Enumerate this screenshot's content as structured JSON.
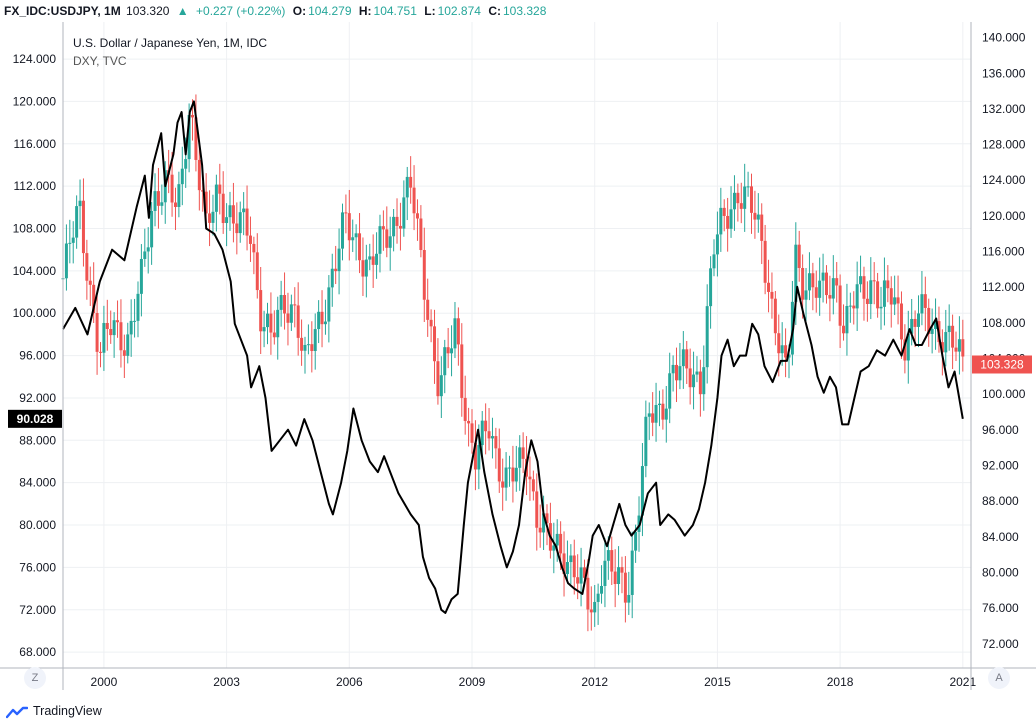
{
  "header": {
    "symbol": "FX_IDC:USDJPY, 1M",
    "price": "103.320",
    "change": "+0.227 (+0.22%)",
    "o_label": "O:",
    "o": "104.279",
    "h_label": "H:",
    "h": "104.751",
    "l_label": "L:",
    "l": "102.874",
    "c_label": "C:",
    "c": "103.328"
  },
  "legend": {
    "title": "U.S. Dollar / Japanese Yen, 1M, IDC",
    "overlay": "DXY, TVC"
  },
  "buttons": {
    "left": "Z",
    "right": "A"
  },
  "footer": {
    "brand": "TradingView"
  },
  "colors": {
    "up": "#26a69a",
    "down": "#ef5350",
    "overlay": "#000000",
    "grid": "#eef0f3"
  },
  "chart_data": {
    "type": "candlestick",
    "title": "U.S. Dollar / Japanese Yen, 1M, IDC",
    "left_axis": {
      "ticks": [
        "68.000",
        "72.000",
        "76.000",
        "80.000",
        "84.000",
        "88.000",
        "92.000",
        "96.000",
        "100.000",
        "104.000",
        "108.000",
        "112.000",
        "116.000",
        "120.000",
        "124.000"
      ],
      "range": [
        66.5,
        127.5
      ],
      "marker_label": "90.028",
      "marker_value": 90.028
    },
    "right_axis": {
      "ticks": [
        "72.000",
        "76.000",
        "80.000",
        "84.000",
        "88.000",
        "92.000",
        "96.000",
        "100.000",
        "104.000",
        "108.000",
        "112.000",
        "116.000",
        "120.000",
        "124.000",
        "128.000",
        "132.000",
        "136.000",
        "140.000"
      ],
      "range": [
        69.28,
        141.75
      ],
      "marker_label": "103.328",
      "marker_value": 103.328
    },
    "x_axis": {
      "ticks": [
        "2000",
        "2003",
        "2006",
        "2009",
        "2012",
        "2015",
        "2018",
        "2021"
      ],
      "range": [
        1999.0,
        2021.2
      ]
    },
    "series": [
      {
        "name": "USDJPY",
        "axis": "right",
        "anchors": [
          [
            1999.0,
            113.0
          ],
          [
            1999.4,
            121.0
          ],
          [
            1999.9,
            104.0
          ],
          [
            2000.2,
            108.0
          ],
          [
            2000.6,
            106.0
          ],
          [
            2000.9,
            112.0
          ],
          [
            2001.2,
            122.0
          ],
          [
            2001.5,
            124.0
          ],
          [
            2001.8,
            120.0
          ],
          [
            2002.1,
            133.0
          ],
          [
            2002.5,
            118.0
          ],
          [
            2002.8,
            123.0
          ],
          [
            2003.2,
            119.0
          ],
          [
            2003.6,
            118.0
          ],
          [
            2003.8,
            110.0
          ],
          [
            2004.1,
            106.0
          ],
          [
            2004.4,
            110.0
          ],
          [
            2004.7,
            110.0
          ],
          [
            2004.9,
            103.0
          ],
          [
            2005.2,
            107.0
          ],
          [
            2005.5,
            112.0
          ],
          [
            2005.9,
            119.0
          ],
          [
            2006.2,
            117.0
          ],
          [
            2006.5,
            114.0
          ],
          [
            2006.9,
            118.0
          ],
          [
            2007.3,
            121.0
          ],
          [
            2007.5,
            123.0
          ],
          [
            2007.8,
            114.0
          ],
          [
            2008.2,
            100.0
          ],
          [
            2008.6,
            108.0
          ],
          [
            2008.9,
            96.0
          ],
          [
            2009.1,
            92.0
          ],
          [
            2009.4,
            97.0
          ],
          [
            2009.8,
            90.0
          ],
          [
            2010.1,
            91.0
          ],
          [
            2010.3,
            94.0
          ],
          [
            2010.6,
            86.0
          ],
          [
            2010.9,
            83.0
          ],
          [
            2011.2,
            83.0
          ],
          [
            2011.4,
            81.0
          ],
          [
            2011.8,
            77.0
          ],
          [
            2012.0,
            76.0
          ],
          [
            2012.2,
            82.0
          ],
          [
            2012.5,
            79.0
          ],
          [
            2012.8,
            78.0
          ],
          [
            2013.0,
            85.0
          ],
          [
            2013.3,
            97.0
          ],
          [
            2013.6,
            98.0
          ],
          [
            2013.9,
            103.0
          ],
          [
            2014.3,
            102.0
          ],
          [
            2014.6,
            102.0
          ],
          [
            2014.9,
            116.0
          ],
          [
            2015.2,
            120.0
          ],
          [
            2015.5,
            123.0
          ],
          [
            2015.8,
            121.0
          ],
          [
            2016.1,
            117.0
          ],
          [
            2016.4,
            108.0
          ],
          [
            2016.7,
            101.0
          ],
          [
            2016.9,
            116.0
          ],
          [
            2017.1,
            113.0
          ],
          [
            2017.5,
            111.0
          ],
          [
            2017.9,
            113.0
          ],
          [
            2018.1,
            107.0
          ],
          [
            2018.4,
            111.0
          ],
          [
            2018.8,
            113.0
          ],
          [
            2019.0,
            110.0
          ],
          [
            2019.3,
            111.0
          ],
          [
            2019.6,
            106.0
          ],
          [
            2019.9,
            109.0
          ],
          [
            2020.2,
            108.0
          ],
          [
            2020.5,
            107.0
          ],
          [
            2020.8,
            105.0
          ],
          [
            2021.0,
            103.328
          ]
        ]
      },
      {
        "name": "DXY",
        "axis": "left",
        "values": [
          [
            1999.0,
            98.5
          ],
          [
            1999.3,
            100.5
          ],
          [
            1999.6,
            98.0
          ],
          [
            1999.9,
            103.0
          ],
          [
            2000.2,
            106.0
          ],
          [
            2000.5,
            105.0
          ],
          [
            2000.8,
            110.0
          ],
          [
            2001.0,
            113.0
          ],
          [
            2001.1,
            109.0
          ],
          [
            2001.2,
            114.0
          ],
          [
            2001.4,
            117.0
          ],
          [
            2001.5,
            112.0
          ],
          [
            2001.7,
            115.0
          ],
          [
            2001.8,
            118.0
          ],
          [
            2001.9,
            119.0
          ],
          [
            2002.0,
            115.0
          ],
          [
            2002.1,
            119.0
          ],
          [
            2002.2,
            120.0
          ],
          [
            2002.4,
            114.0
          ],
          [
            2002.5,
            108.0
          ],
          [
            2002.7,
            107.5
          ],
          [
            2002.9,
            106.0
          ],
          [
            2003.1,
            103.0
          ],
          [
            2003.2,
            99.0
          ],
          [
            2003.5,
            96.0
          ],
          [
            2003.6,
            93.0
          ],
          [
            2003.8,
            95.0
          ],
          [
            2003.95,
            92.0
          ],
          [
            2004.1,
            87.0
          ],
          [
            2004.3,
            88.0
          ],
          [
            2004.5,
            89.0
          ],
          [
            2004.7,
            87.5
          ],
          [
            2004.9,
            90.0
          ],
          [
            2005.1,
            88.0
          ],
          [
            2005.3,
            85.0
          ],
          [
            2005.5,
            82.0
          ],
          [
            2005.6,
            81.0
          ],
          [
            2005.8,
            84.0
          ],
          [
            2005.95,
            87.0
          ],
          [
            2006.1,
            91.0
          ],
          [
            2006.3,
            88.0
          ],
          [
            2006.5,
            86.0
          ],
          [
            2006.7,
            85.0
          ],
          [
            2006.85,
            86.5
          ],
          [
            2007.0,
            85.0
          ],
          [
            2007.2,
            83.0
          ],
          [
            2007.5,
            81.0
          ],
          [
            2007.7,
            80.0
          ],
          [
            2007.8,
            77.0
          ],
          [
            2007.95,
            75.0
          ],
          [
            2008.1,
            74.0
          ],
          [
            2008.25,
            72.0
          ],
          [
            2008.35,
            71.7
          ],
          [
            2008.5,
            73.0
          ],
          [
            2008.65,
            73.5
          ],
          [
            2008.8,
            80.0
          ],
          [
            2008.9,
            84.0
          ],
          [
            2009.0,
            86.0
          ],
          [
            2009.15,
            89.0
          ],
          [
            2009.3,
            85.0
          ],
          [
            2009.5,
            81.0
          ],
          [
            2009.7,
            78.0
          ],
          [
            2009.85,
            76.0
          ],
          [
            2010.0,
            77.5
          ],
          [
            2010.15,
            80.0
          ],
          [
            2010.3,
            85.0
          ],
          [
            2010.45,
            88.0
          ],
          [
            2010.6,
            86.0
          ],
          [
            2010.75,
            81.0
          ],
          [
            2010.9,
            79.0
          ],
          [
            2011.05,
            78.0
          ],
          [
            2011.2,
            76.0
          ],
          [
            2011.35,
            74.5
          ],
          [
            2011.5,
            74.0
          ],
          [
            2011.7,
            73.5
          ],
          [
            2011.85,
            76.5
          ],
          [
            2011.95,
            79.0
          ],
          [
            2012.1,
            80.0
          ],
          [
            2012.3,
            78.0
          ],
          [
            2012.45,
            80.0
          ],
          [
            2012.6,
            82.0
          ],
          [
            2012.75,
            80.0
          ],
          [
            2012.9,
            79.0
          ],
          [
            2013.1,
            80.0
          ],
          [
            2013.3,
            83.0
          ],
          [
            2013.5,
            84.0
          ],
          [
            2013.6,
            80.0
          ],
          [
            2013.8,
            81.0
          ],
          [
            2013.95,
            80.5
          ],
          [
            2014.2,
            79.0
          ],
          [
            2014.4,
            80.0
          ],
          [
            2014.55,
            81.5
          ],
          [
            2014.7,
            84.0
          ],
          [
            2014.85,
            87.5
          ],
          [
            2015.0,
            92.0
          ],
          [
            2015.1,
            96.0
          ],
          [
            2015.25,
            97.5
          ],
          [
            2015.4,
            95.0
          ],
          [
            2015.55,
            96.0
          ],
          [
            2015.7,
            96.0
          ],
          [
            2015.85,
            99.0
          ],
          [
            2016.0,
            98.0
          ],
          [
            2016.15,
            95.0
          ],
          [
            2016.35,
            93.5
          ],
          [
            2016.55,
            95.5
          ],
          [
            2016.7,
            95.5
          ],
          [
            2016.85,
            98.5
          ],
          [
            2016.95,
            102.5
          ],
          [
            2017.1,
            100.0
          ],
          [
            2017.3,
            97.0
          ],
          [
            2017.45,
            94.0
          ],
          [
            2017.6,
            92.5
          ],
          [
            2017.75,
            94.0
          ],
          [
            2017.9,
            93.0
          ],
          [
            2018.05,
            89.5
          ],
          [
            2018.2,
            89.5
          ],
          [
            2018.35,
            92.0
          ],
          [
            2018.5,
            94.5
          ],
          [
            2018.7,
            95.0
          ],
          [
            2018.9,
            96.5
          ],
          [
            2019.1,
            96.0
          ],
          [
            2019.3,
            97.5
          ],
          [
            2019.5,
            96.0
          ],
          [
            2019.7,
            98.5
          ],
          [
            2019.85,
            97.0
          ],
          [
            2020.0,
            97.0
          ],
          [
            2020.2,
            98.5
          ],
          [
            2020.35,
            99.5
          ],
          [
            2020.5,
            96.0
          ],
          [
            2020.65,
            93.0
          ],
          [
            2020.8,
            94.5
          ],
          [
            2021.0,
            90.028
          ]
        ]
      }
    ],
    "grid": true
  }
}
